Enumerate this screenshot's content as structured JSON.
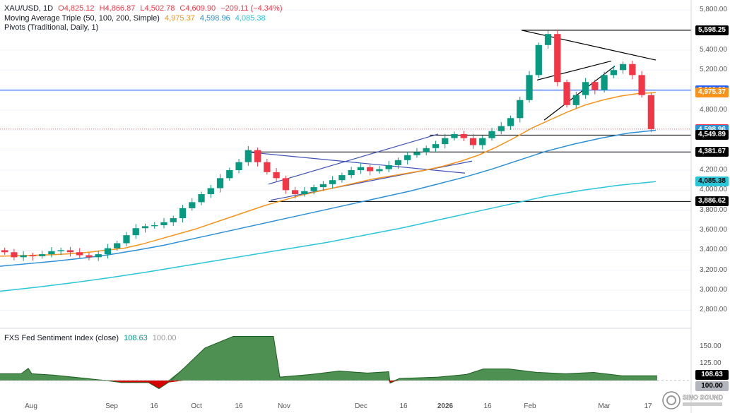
{
  "header": {
    "symbol": "XAU/USD, 1D",
    "open": "O4,825.12",
    "high": "H4,866.87",
    "low": "L4,502.78",
    "close": "C4,609.90",
    "change": "−209.11 (−4.34%)",
    "ma_label": "Moving Average Triple (50, 100, 200, Simple)",
    "ma50": "4,975.37",
    "ma100": "4,598.96",
    "ma200": "4,085.38",
    "pivots_label": "Pivots (Traditional, Daily, 1)"
  },
  "colors": {
    "up": "#089981",
    "down": "#f23645",
    "ma50": "#f7931a",
    "ma100": "#2a8fd6",
    "ma200": "#29c5d9",
    "resistance": "#2962ff",
    "channel": "#3f51b5",
    "sentiment": "#2e7d32"
  },
  "chart_data": [
    {
      "type": "candlestick",
      "title": "XAU/USD, 1D",
      "ylim": [
        2620,
        5900
      ],
      "yticks": [
        "5,800.00",
        "5,600.00",
        "5,400.00",
        "5,200.00",
        "5,000.00",
        "4,800.00",
        "4,600.00",
        "4,400.00",
        "4,200.00",
        "4,000.00",
        "3,800.00",
        "3,600.00",
        "3,400.00",
        "3,200.00",
        "3,000.00",
        "2,800.00"
      ],
      "x_labels": [
        "Aug",
        "Sep",
        "16",
        "Oct",
        "16",
        "Nov",
        "Dec",
        "16",
        "2026",
        "16",
        "Feb",
        "Mar",
        "17"
      ],
      "price_tags": [
        {
          "label": "5,598.25",
          "value": 5598.25,
          "bg": "#000000",
          "fg": "#ffffff"
        },
        {
          "label": "5,000.00",
          "value": 5000.0,
          "bg": "#2962ff",
          "fg": "#ffffff"
        },
        {
          "label": "4,975.37",
          "value": 4975.37,
          "bg": "#f7931a",
          "fg": "#ffffff"
        },
        {
          "label": "4,609.90",
          "value": 4609.9,
          "bg": "#f23645",
          "fg": "#ffffff"
        },
        {
          "label": "4,598.96",
          "value": 4598.96,
          "bg": "#2a8fd6",
          "fg": "#ffffff"
        },
        {
          "label": "4,549.89",
          "value": 4549.89,
          "bg": "#000000",
          "fg": "#ffffff"
        },
        {
          "label": "4,381.67",
          "value": 4381.67,
          "bg": "#000000",
          "fg": "#ffffff"
        },
        {
          "label": "4,085.38",
          "value": 4085.38,
          "bg": "#29c5d9",
          "fg": "#000000"
        },
        {
          "label": "3,886.62",
          "value": 3886.62,
          "bg": "#000000",
          "fg": "#ffffff"
        }
      ],
      "series": [
        {
          "name": "XAU/USD",
          "kind": "close",
          "values": [
            3380,
            3330,
            3350,
            3340,
            3360,
            3390,
            3400,
            3380,
            3350,
            3330,
            3360,
            3420,
            3470,
            3550,
            3620,
            3640,
            3650,
            3680,
            3720,
            3820,
            3880,
            3960,
            4020,
            4120,
            4200,
            4280,
            4400,
            4280,
            4180,
            4120,
            4000,
            3960,
            3990,
            4030,
            4060,
            4100,
            4150,
            4200,
            4230,
            4190,
            4210,
            4250,
            4300,
            4350,
            4380,
            4420,
            4460,
            4520,
            4560,
            4520,
            4450,
            4520,
            4590,
            4640,
            4720,
            4900,
            5150,
            5450,
            5560,
            5080,
            4850,
            4950,
            5080,
            5000,
            5150,
            5200,
            5260,
            5150,
            4950,
            4609.9
          ]
        },
        {
          "name": "MA 50",
          "kind": "ma",
          "values": [
            3340,
            3345,
            3350,
            3355,
            3365,
            3380,
            3400,
            3420,
            3460,
            3510,
            3560,
            3610,
            3670,
            3730,
            3790,
            3850,
            3900,
            3950,
            3990,
            4030,
            4070,
            4110,
            4140,
            4170,
            4200,
            4240,
            4290,
            4350,
            4430,
            4520,
            4620,
            4700,
            4780,
            4850,
            4900,
            4940,
            4965,
            4975.37
          ]
        },
        {
          "name": "MA 100",
          "kind": "ma",
          "values": [
            3240,
            3265,
            3290,
            3320,
            3355,
            3400,
            3450,
            3510,
            3570,
            3630,
            3690,
            3750,
            3810,
            3870,
            3930,
            3990,
            4060,
            4130,
            4210,
            4300,
            4390,
            4460,
            4520,
            4570,
            4598.96
          ]
        },
        {
          "name": "MA 200",
          "kind": "ma",
          "values": [
            2990,
            3030,
            3075,
            3125,
            3180,
            3240,
            3300,
            3360,
            3420,
            3480,
            3550,
            3620,
            3700,
            3780,
            3860,
            3940,
            4000,
            4050,
            4085.38
          ]
        }
      ]
    },
    {
      "type": "area",
      "title": "FXS Fed Sentiment Index (close)",
      "current_value": "108.63",
      "baseline_label": "100.00",
      "baseline": 100,
      "ylim": [
        76,
        176
      ],
      "yticks": [
        "150.00",
        "125.00"
      ],
      "x": [
        0,
        30,
        40,
        45,
        75,
        85,
        150,
        172,
        210,
        225,
        238,
        260,
        290,
        330,
        360,
        375,
        387,
        396,
        440,
        480,
        520,
        550,
        552,
        556,
        565,
        620,
        660,
        684,
        720,
        760,
        800,
        840,
        880,
        930
      ],
      "values": [
        110,
        110,
        118,
        110,
        108,
        107,
        100,
        97,
        97,
        88,
        97,
        118,
        148,
        165,
        165,
        165,
        165,
        105,
        109,
        114,
        111,
        113,
        96,
        98,
        103,
        105,
        109,
        117,
        117,
        112,
        110,
        112,
        107,
        107
      ]
    }
  ]
}
